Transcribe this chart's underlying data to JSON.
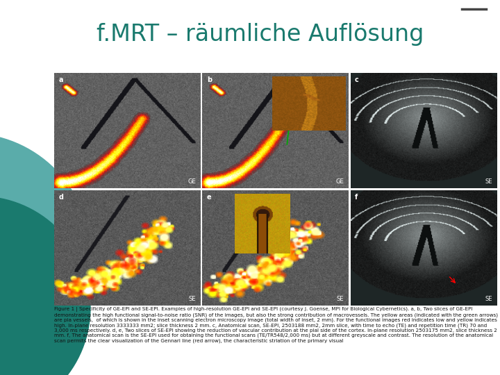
{
  "title": "f.MRT – räumliche Auflösung",
  "title_color": "#1a7a6e",
  "title_fontsize": 24,
  "background_color": "#ffffff",
  "figure_size": [
    7.2,
    5.4
  ],
  "dpi": 100,
  "caption_text": "Figure 1 | Specificity of GE-EPI and SE-EPI. Examples of high-resolution GE-EPI and SE-EPI (courtesy J. Goense, MPI for Biological Cybernetics). a, b, Two slices of GE-EPI demonstrating the high functional signal-to-noise ratio (SNR) of the images, but also the strong contribution of macrovessels. The yellow areas (indicated with the green arrows) are pia vessels,  of which is shown in the inset scanning electron microscopy image (total width of inset, 2 mm). For the functional images red indicates low and yellow indicates high. In-plane resolution 3333333 mm2; slice thickness 2 mm. c, Anatomical scan, SE-EPI, 2503188 mm2, 2mm slice, with time to echo (TE) and repetition time (TR) 70 and 3,000 ms respectively. d, e, Two slices of SE-EPI showing the reduction of vascular contribution at the pial side of the cortex. In-plane resolution 2503175 mm2, slice thickness 2 mm. f, The anatomical scan is the SE-EPI used for obtaining the functional scans (TE/TR548/2,000 ms) but at different greyscale and contrast. The resolution of the anatomical scan permits the clear visualization of the Gennari line (red arrow), the characteristic striation of the primary visual",
  "caption_fontsize": 5.2,
  "panel_labels": [
    "a",
    "b",
    "c",
    "d",
    "e",
    "f"
  ],
  "panel_sublabels": [
    "GE",
    "GE",
    "SE",
    "SE",
    "SE",
    "SE"
  ],
  "teal_dark": "#1a7a6e",
  "teal_light": "#5aacaa",
  "line_color": "#333333"
}
